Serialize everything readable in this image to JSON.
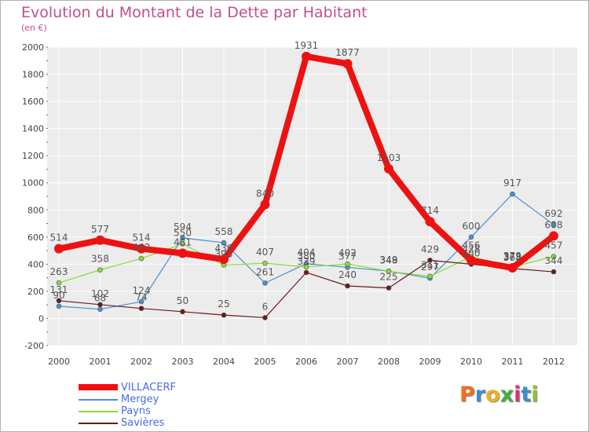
{
  "title": "Evolution du Montant de la Dette par Habitant",
  "subtitle": "(en €)",
  "chart_data": {
    "type": "line",
    "x": [
      "2000",
      "2001",
      "2002",
      "2003",
      "2004",
      "2005",
      "2006",
      "2007",
      "2008",
      "2009",
      "2010",
      "2011",
      "2012"
    ],
    "ylim": [
      -200,
      2000
    ],
    "yticks": [
      -200,
      0,
      200,
      400,
      600,
      800,
      1000,
      1200,
      1400,
      1600,
      1800,
      2000
    ],
    "grid": true,
    "series": [
      {
        "name": "Mergey",
        "color": "#4a8fd0",
        "values": [
          90,
          68,
          124,
          594,
          558,
          261,
          404,
          377,
          349,
          297,
          600,
          917,
          692
        ]
      },
      {
        "name": "Payns",
        "color": "#88dd33",
        "values": [
          263,
          358,
          442,
          550,
          393,
          407,
          380,
          402,
          348,
          311,
          456,
          379,
          457
        ]
      },
      {
        "name": "Savières",
        "color": "#6b1a1a",
        "values": [
          131,
          102,
          74,
          50,
          25,
          6,
          339,
          240,
          225,
          429,
          400,
          368,
          344
        ]
      },
      {
        "name": "VILLACERF",
        "color": "#ee1111",
        "values": [
          514,
          577,
          514,
          481,
          436,
          840,
          1931,
          1877,
          1103,
          714,
          428,
          373,
          608
        ]
      }
    ],
    "labels": {
      "Mergey": [
        "90",
        "68",
        "124",
        "594",
        "558",
        "261",
        "404",
        "377",
        "349",
        "297",
        "600",
        "917",
        "692"
      ],
      "Payns": [
        "263",
        "358",
        "442",
        "550",
        "393",
        "407",
        "380",
        "402",
        "348",
        "311",
        "456",
        "379",
        "457"
      ],
      "Savières": [
        "131",
        "102",
        "74",
        "50",
        "25",
        "6",
        "339",
        "240",
        "225",
        "429",
        "400",
        "368",
        "344"
      ],
      "VILLACERF": [
        "514",
        "577",
        "514",
        "481",
        "436",
        "840",
        "1931",
        "1877",
        "1103",
        "714",
        "428",
        "373",
        "608"
      ]
    },
    "legend": [
      "VILLACERF",
      "Mergey",
      "Payns",
      "Savières"
    ]
  },
  "logo": {
    "letters": [
      "P",
      "r",
      "o",
      "x",
      "i",
      "t",
      "i"
    ],
    "colors": [
      "#f07020",
      "#3a8fd0",
      "#f0b020",
      "#40b040",
      "#e03070",
      "#3a8fd0",
      "#90c030"
    ]
  }
}
